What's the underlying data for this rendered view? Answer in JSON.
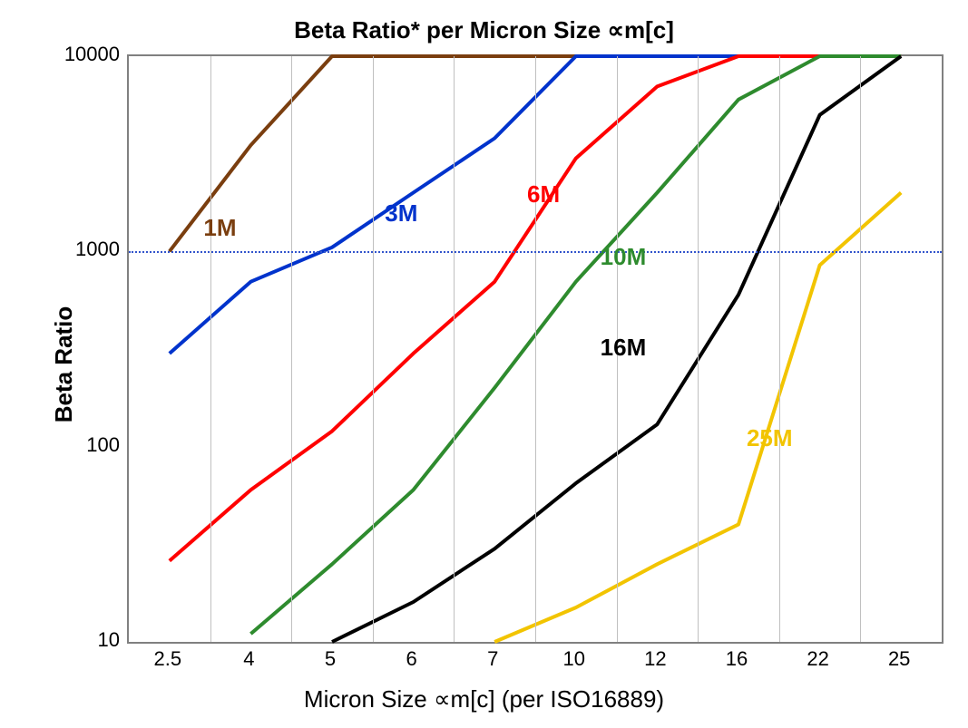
{
  "chart": {
    "type": "line",
    "title": "Beta Ratio* per Micron Size ∝m[c]",
    "title_fontsize": 26,
    "xlabel": "Micron Size ∝m[c] (per ISO16889)",
    "ylabel": "Beta Ratio",
    "label_fontsize": 26,
    "background_color": "#ffffff",
    "grid_color": "#c0c0c0",
    "border_color": "#808080",
    "font_family": "Arial",
    "x_categories": [
      "2.5",
      "4",
      "5",
      "6",
      "7",
      "10",
      "12",
      "16",
      "22",
      "25"
    ],
    "y_scale": "log",
    "ylim": [
      10,
      10000
    ],
    "y_ticks": [
      10,
      100,
      1000,
      10000
    ],
    "y_tick_labels": [
      "10",
      "100",
      "1000",
      "10000"
    ],
    "reference_line": {
      "y": 1000,
      "style": "dotted",
      "color": "#3355cc",
      "width": 2
    },
    "line_width": 4,
    "series": [
      {
        "name": "1M",
        "label": "1M",
        "color": "#7a3e0f",
        "label_xy": [
          0.42,
          1550
        ],
        "points": [
          [
            0,
            1000
          ],
          [
            1,
            3500
          ],
          [
            2,
            10000
          ],
          [
            9,
            10000
          ]
        ]
      },
      {
        "name": "3M",
        "label": "3M",
        "color": "#0033cc",
        "label_xy": [
          2.65,
          1850
        ],
        "points": [
          [
            0,
            300
          ],
          [
            1,
            700
          ],
          [
            2,
            1050
          ],
          [
            3,
            2000
          ],
          [
            4,
            3800
          ],
          [
            5,
            10000
          ],
          [
            9,
            10000
          ]
        ]
      },
      {
        "name": "6M",
        "label": "6M",
        "color": "#ff0000",
        "label_xy": [
          4.4,
          2300
        ],
        "points": [
          [
            0,
            26
          ],
          [
            1,
            60
          ],
          [
            2,
            120
          ],
          [
            3,
            300
          ],
          [
            4,
            700
          ],
          [
            5,
            3000
          ],
          [
            6,
            7000
          ],
          [
            7,
            10000
          ],
          [
            9,
            10000
          ]
        ]
      },
      {
        "name": "10M",
        "label": "10M",
        "color": "#2e8b2e",
        "label_xy": [
          5.3,
          1100
        ],
        "points": [
          [
            1,
            11
          ],
          [
            2,
            25
          ],
          [
            3,
            60
          ],
          [
            4,
            200
          ],
          [
            5,
            700
          ],
          [
            6,
            2000
          ],
          [
            7,
            6000
          ],
          [
            8,
            10000
          ],
          [
            9,
            10000
          ]
        ]
      },
      {
        "name": "16M",
        "label": "16M",
        "color": "#000000",
        "label_xy": [
          5.3,
          380
        ],
        "points": [
          [
            2,
            10
          ],
          [
            3,
            16
          ],
          [
            4,
            30
          ],
          [
            5,
            65
          ],
          [
            6,
            130
          ],
          [
            7,
            600
          ],
          [
            8,
            5000
          ],
          [
            9,
            10000
          ]
        ]
      },
      {
        "name": "25M",
        "label": "25M",
        "color": "#f2c400",
        "label_xy": [
          7.1,
          130
        ],
        "points": [
          [
            4,
            10
          ],
          [
            5,
            15
          ],
          [
            6,
            25
          ],
          [
            7,
            40
          ],
          [
            8,
            850
          ],
          [
            9,
            2000
          ]
        ]
      }
    ]
  }
}
